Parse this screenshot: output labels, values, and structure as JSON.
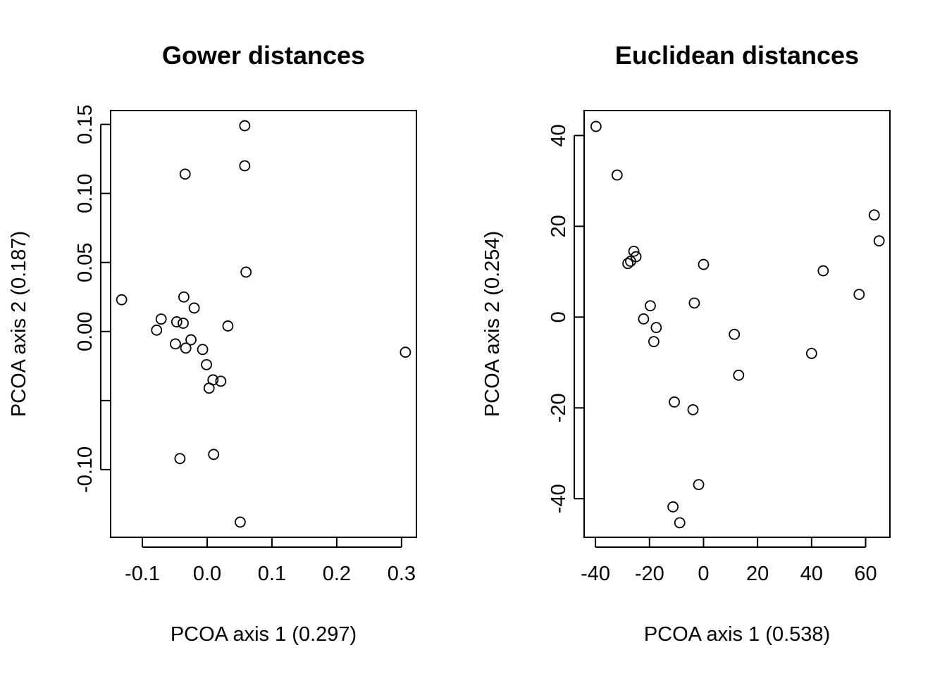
{
  "chart_data": [
    {
      "type": "scatter",
      "title": "Gower distances",
      "xlabel": "PCOA axis 1 (0.297)",
      "ylabel": "PCOA axis 2 (0.187)",
      "xlim": [
        -0.149,
        0.323
      ],
      "ylim": [
        -0.149,
        0.16
      ],
      "xticks": [
        -0.1,
        0.0,
        0.1,
        0.2,
        0.3
      ],
      "xtick_labels": [
        "-0.1",
        "0.0",
        "0.1",
        "0.2",
        "0.3"
      ],
      "yticks": [
        -0.1,
        -0.05,
        0.0,
        0.05,
        0.1,
        0.15
      ],
      "ytick_labels": [
        "-0.10",
        "",
        "0.00",
        "0.05",
        "0.10",
        "0.15"
      ],
      "grid": false,
      "marker": "open-circle",
      "x": [
        0.058,
        0.058,
        -0.034,
        0.06,
        -0.132,
        -0.036,
        -0.02,
        -0.071,
        -0.047,
        -0.037,
        -0.078,
        0.032,
        -0.049,
        -0.025,
        -0.033,
        -0.007,
        -0.001,
        0.009,
        0.021,
        0.003,
        0.01,
        -0.042,
        0.051,
        0.306
      ],
      "y": [
        0.149,
        0.12,
        0.114,
        0.043,
        0.023,
        0.025,
        0.017,
        0.009,
        0.007,
        0.006,
        0.001,
        0.004,
        -0.009,
        -0.006,
        -0.012,
        -0.013,
        -0.024,
        -0.035,
        -0.036,
        -0.041,
        -0.089,
        -0.092,
        -0.138,
        -0.015
      ]
    },
    {
      "type": "scatter",
      "title": "Euclidean distances",
      "xlabel": "PCOA axis 1 (0.538)",
      "ylabel": "PCOA axis 2 (0.254)",
      "xlim": [
        -44.2,
        69.0
      ],
      "ylim": [
        -48.5,
        45.5
      ],
      "xticks": [
        -40,
        -20,
        0,
        20,
        40,
        60
      ],
      "xtick_labels": [
        "-40",
        "-20",
        "0",
        "20",
        "40",
        "60"
      ],
      "yticks": [
        -40,
        -20,
        0,
        20,
        40
      ],
      "ytick_labels": [
        "-40",
        "-20",
        "0",
        "20",
        "40"
      ],
      "grid": false,
      "marker": "open-circle",
      "x": [
        -39.8,
        -32.0,
        -25.8,
        -25.0,
        -27.0,
        -28.0,
        0.0,
        -19.7,
        -22.2,
        -17.5,
        -18.4,
        -3.4,
        11.4,
        13.0,
        -10.8,
        -3.9,
        40.0,
        44.3,
        57.6,
        63.2,
        65.0,
        -1.8,
        -11.3,
        -8.8
      ],
      "y": [
        42.0,
        31.3,
        14.5,
        13.3,
        12.3,
        11.8,
        11.6,
        2.5,
        -0.4,
        -2.3,
        -5.4,
        3.1,
        -3.8,
        -12.8,
        -18.7,
        -20.4,
        -8.0,
        10.2,
        5.0,
        22.5,
        16.8,
        -36.9,
        -41.8,
        -45.3
      ]
    }
  ]
}
